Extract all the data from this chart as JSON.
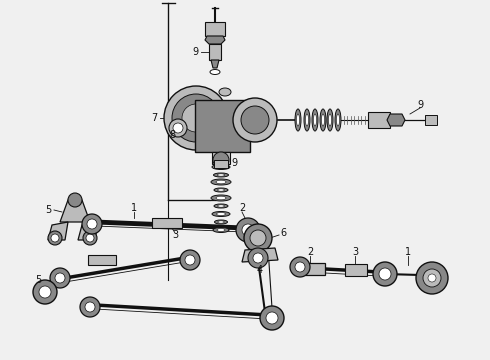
{
  "bg_color": "#f0f0f0",
  "line_color": "#111111",
  "gray_dark": "#555555",
  "gray_med": "#888888",
  "gray_light": "#bbbbbb",
  "gray_fill": "#999999",
  "white": "#ffffff",
  "fig_width": 4.9,
  "fig_height": 3.6,
  "dpi": 100,
  "xlim": [
    0,
    490
  ],
  "ylim": [
    0,
    360
  ]
}
